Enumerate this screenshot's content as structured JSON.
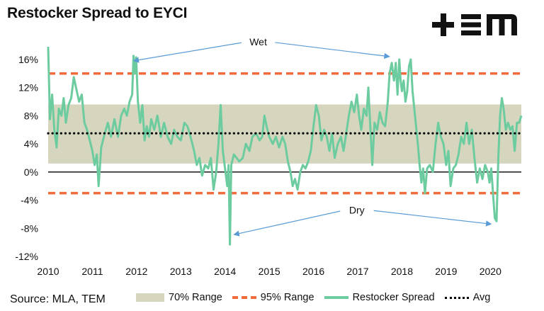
{
  "header": {
    "title": "Restocker Spread to EYCI"
  },
  "logo": {
    "text": "+EM"
  },
  "footer": {
    "source": "Source: MLA, TEM"
  },
  "colors": {
    "range70": "#d6d6bf",
    "range95": "#f26b3a",
    "spread": "#6ccc9f",
    "avg": "#000000",
    "annotation_arrow": "#5b9bd5"
  },
  "legend": [
    {
      "label": "70% Range",
      "style": "box",
      "color": "#d6d6bf"
    },
    {
      "label": "95% Range",
      "style": "dashed",
      "color": "#f26b3a"
    },
    {
      "label": "Restocker Spread",
      "style": "solid",
      "color": "#6ccc9f"
    },
    {
      "label": "Avg",
      "style": "dotted",
      "color": "#000000"
    }
  ],
  "chart_data": {
    "type": "line",
    "title": "Restocker Spread to EYCI",
    "xlabel": "",
    "ylabel": "",
    "xlim": [
      2010,
      2020.7
    ],
    "ylim": [
      -12,
      18
    ],
    "x_ticks": [
      "2010",
      "2011",
      "2012",
      "2013",
      "2014",
      "2015",
      "2016",
      "2017",
      "2018",
      "2019",
      "2020"
    ],
    "y_ticks": [
      {
        "value": -12,
        "label": "-12%"
      },
      {
        "value": -8,
        "label": "-8%"
      },
      {
        "value": -4,
        "label": "-4%"
      },
      {
        "value": 0,
        "label": "0%"
      },
      {
        "value": 4,
        "label": "4%"
      },
      {
        "value": 8,
        "label": "8%"
      },
      {
        "value": 12,
        "label": "12%"
      },
      {
        "value": 16,
        "label": "16%"
      }
    ],
    "grid": false,
    "range70": [
      1.2,
      9.6
    ],
    "range95": [
      -3.0,
      14.0
    ],
    "average": 5.5,
    "series": [
      {
        "name": "Restocker Spread",
        "points": [
          [
            2010.0,
            17.8
          ],
          [
            2010.04,
            7.5
          ],
          [
            2010.09,
            11.0
          ],
          [
            2010.14,
            6.0
          ],
          [
            2010.19,
            3.5
          ],
          [
            2010.24,
            9.0
          ],
          [
            2010.3,
            8.0
          ],
          [
            2010.35,
            10.5
          ],
          [
            2010.4,
            7.0
          ],
          [
            2010.46,
            9.5
          ],
          [
            2010.52,
            10.5
          ],
          [
            2010.58,
            13.5
          ],
          [
            2010.63,
            12.0
          ],
          [
            2010.7,
            10.0
          ],
          [
            2010.76,
            11.0
          ],
          [
            2010.82,
            7.0
          ],
          [
            2010.88,
            6.0
          ],
          [
            2010.94,
            4.5
          ],
          [
            2011.0,
            3.0
          ],
          [
            2011.05,
            1.0
          ],
          [
            2011.1,
            2.5
          ],
          [
            2011.14,
            -2.0
          ],
          [
            2011.2,
            3.5
          ],
          [
            2011.28,
            5.5
          ],
          [
            2011.35,
            7.0
          ],
          [
            2011.42,
            5.0
          ],
          [
            2011.5,
            7.5
          ],
          [
            2011.58,
            5.0
          ],
          [
            2011.65,
            8.0
          ],
          [
            2011.72,
            9.0
          ],
          [
            2011.78,
            8.0
          ],
          [
            2011.84,
            10.0
          ],
          [
            2011.9,
            11.0
          ],
          [
            2011.93,
            16.5
          ],
          [
            2011.96,
            14.0
          ],
          [
            2011.99,
            16.3
          ],
          [
            2012.03,
            10.0
          ],
          [
            2012.08,
            7.0
          ],
          [
            2012.13,
            9.5
          ],
          [
            2012.18,
            4.5
          ],
          [
            2012.23,
            6.5
          ],
          [
            2012.28,
            5.0
          ],
          [
            2012.33,
            7.5
          ],
          [
            2012.4,
            6.0
          ],
          [
            2012.47,
            8.0
          ],
          [
            2012.55,
            5.0
          ],
          [
            2012.62,
            7.0
          ],
          [
            2012.7,
            5.0
          ],
          [
            2012.78,
            4.0
          ],
          [
            2012.85,
            6.0
          ],
          [
            2012.92,
            5.0
          ],
          [
            2013.0,
            4.5
          ],
          [
            2013.08,
            7.0
          ],
          [
            2013.15,
            6.5
          ],
          [
            2013.22,
            5.0
          ],
          [
            2013.3,
            3.0
          ],
          [
            2013.36,
            1.0
          ],
          [
            2013.42,
            2.0
          ],
          [
            2013.48,
            -0.5
          ],
          [
            2013.55,
            1.0
          ],
          [
            2013.62,
            0.5
          ],
          [
            2013.68,
            2.0
          ],
          [
            2013.74,
            -2.5
          ],
          [
            2013.8,
            0.0
          ],
          [
            2013.85,
            4.0
          ],
          [
            2013.9,
            9.5
          ],
          [
            2013.95,
            3.0
          ],
          [
            2014.0,
            0.5
          ],
          [
            2014.05,
            -2.0
          ],
          [
            2014.08,
            1.0
          ],
          [
            2014.11,
            -10.3
          ],
          [
            2014.14,
            1.0
          ],
          [
            2014.2,
            2.5
          ],
          [
            2014.26,
            2.0
          ],
          [
            2014.32,
            1.5
          ],
          [
            2014.4,
            2.0
          ],
          [
            2014.47,
            4.0
          ],
          [
            2014.55,
            3.0
          ],
          [
            2014.62,
            5.0
          ],
          [
            2014.7,
            5.5
          ],
          [
            2014.78,
            4.5
          ],
          [
            2014.84,
            5.0
          ],
          [
            2014.89,
            8.0
          ],
          [
            2014.94,
            6.5
          ],
          [
            2015.0,
            5.0
          ],
          [
            2015.08,
            4.0
          ],
          [
            2015.15,
            5.0
          ],
          [
            2015.22,
            3.5
          ],
          [
            2015.3,
            5.0
          ],
          [
            2015.36,
            4.0
          ],
          [
            2015.42,
            1.5
          ],
          [
            2015.48,
            0.0
          ],
          [
            2015.53,
            -2.0
          ],
          [
            2015.58,
            -1.0
          ],
          [
            2015.64,
            -2.5
          ],
          [
            2015.7,
            0.0
          ],
          [
            2015.76,
            1.0
          ],
          [
            2015.82,
            0.5
          ],
          [
            2015.88,
            1.5
          ],
          [
            2015.94,
            3.0
          ],
          [
            2016.0,
            6.5
          ],
          [
            2016.06,
            9.5
          ],
          [
            2016.12,
            8.0
          ],
          [
            2016.18,
            4.5
          ],
          [
            2016.24,
            6.0
          ],
          [
            2016.3,
            5.0
          ],
          [
            2016.36,
            3.0
          ],
          [
            2016.42,
            5.5
          ],
          [
            2016.48,
            2.0
          ],
          [
            2016.55,
            4.0
          ],
          [
            2016.62,
            5.0
          ],
          [
            2016.68,
            3.0
          ],
          [
            2016.74,
            5.5
          ],
          [
            2016.8,
            8.0
          ],
          [
            2016.86,
            10.0
          ],
          [
            2016.92,
            8.5
          ],
          [
            2016.98,
            11.0
          ],
          [
            2017.03,
            8.0
          ],
          [
            2017.08,
            6.0
          ],
          [
            2017.14,
            9.0
          ],
          [
            2017.2,
            8.0
          ],
          [
            2017.24,
            12.0
          ],
          [
            2017.28,
            7.0
          ],
          [
            2017.33,
            1.0
          ],
          [
            2017.38,
            7.0
          ],
          [
            2017.44,
            6.0
          ],
          [
            2017.5,
            8.5
          ],
          [
            2017.56,
            7.0
          ],
          [
            2017.62,
            6.5
          ],
          [
            2017.68,
            10.0
          ],
          [
            2017.72,
            14.0
          ],
          [
            2017.77,
            15.5
          ],
          [
            2017.82,
            13.0
          ],
          [
            2017.86,
            15.5
          ],
          [
            2017.9,
            11.0
          ],
          [
            2017.94,
            16.0
          ],
          [
            2017.97,
            13.0
          ],
          [
            2018.0,
            11.5
          ],
          [
            2018.04,
            13.0
          ],
          [
            2018.08,
            10.0
          ],
          [
            2018.12,
            11.5
          ],
          [
            2018.16,
            15.0
          ],
          [
            2018.2,
            16.0
          ],
          [
            2018.24,
            11.5
          ],
          [
            2018.28,
            9.0
          ],
          [
            2018.32,
            6.5
          ],
          [
            2018.36,
            4.0
          ],
          [
            2018.4,
            1.0
          ],
          [
            2018.44,
            -1.5
          ],
          [
            2018.48,
            0.5
          ],
          [
            2018.52,
            -3.0
          ],
          [
            2018.57,
            0.5
          ],
          [
            2018.63,
            1.0
          ],
          [
            2018.7,
            0.0
          ],
          [
            2018.76,
            4.0
          ],
          [
            2018.82,
            7.0
          ],
          [
            2018.88,
            5.0
          ],
          [
            2018.94,
            4.0
          ],
          [
            2019.0,
            1.0
          ],
          [
            2019.05,
            3.0
          ],
          [
            2019.1,
            -2.0
          ],
          [
            2019.16,
            0.5
          ],
          [
            2019.22,
            1.0
          ],
          [
            2019.28,
            2.5
          ],
          [
            2019.34,
            5.0
          ],
          [
            2019.4,
            4.0
          ],
          [
            2019.46,
            7.0
          ],
          [
            2019.52,
            4.0
          ],
          [
            2019.58,
            6.0
          ],
          [
            2019.64,
            2.0
          ],
          [
            2019.7,
            -1.5
          ],
          [
            2019.76,
            0.5
          ],
          [
            2019.82,
            -1.0
          ],
          [
            2019.88,
            1.0
          ],
          [
            2019.94,
            0.0
          ],
          [
            2019.98,
            -1.5
          ],
          [
            2020.02,
            0.5
          ],
          [
            2020.06,
            -3.0
          ],
          [
            2020.1,
            -6.5
          ],
          [
            2020.14,
            -7.0
          ],
          [
            2020.18,
            2.0
          ],
          [
            2020.22,
            8.0
          ],
          [
            2020.26,
            10.5
          ],
          [
            2020.3,
            9.0
          ],
          [
            2020.35,
            6.0
          ],
          [
            2020.4,
            7.0
          ],
          [
            2020.45,
            6.0
          ],
          [
            2020.5,
            6.5
          ],
          [
            2020.55,
            3.0
          ],
          [
            2020.6,
            7.0
          ],
          [
            2020.65,
            7.0
          ],
          [
            2020.7,
            8.0
          ]
        ]
      }
    ],
    "annotations": [
      {
        "text": "Wet",
        "label_x": 2014.75,
        "label_y": 18.5,
        "arrows": [
          [
            2011.93,
            15.8
          ],
          [
            2017.72,
            16.4
          ]
        ]
      },
      {
        "text": "Dry",
        "label_x": 2016.98,
        "label_y": -5.4,
        "arrows": [
          [
            2014.2,
            -8.9
          ],
          [
            2020.02,
            -7.4
          ]
        ]
      }
    ]
  }
}
